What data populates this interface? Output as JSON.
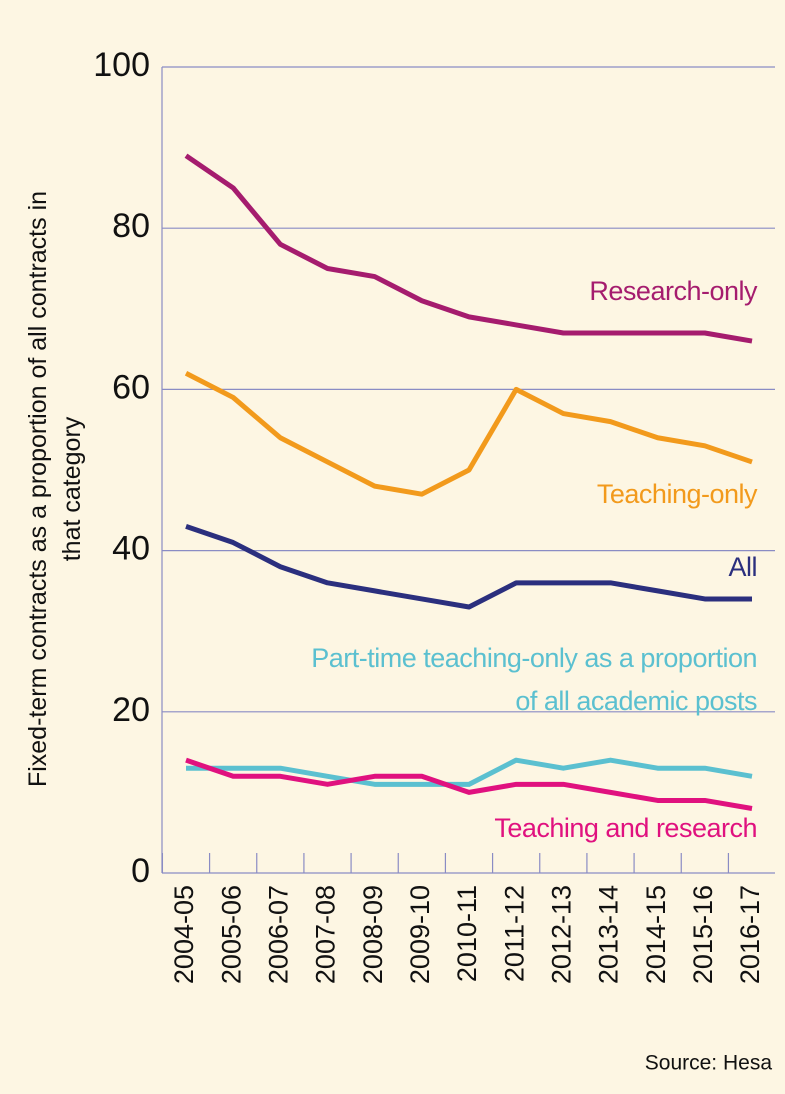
{
  "chart_data": {
    "type": "line",
    "y_label": "Fixed-term contracts as a proportion of all contracts in that category",
    "source": "Source: Hesa",
    "categories": [
      "2004-05",
      "2005-06",
      "2006-07",
      "2007-08",
      "2008-09",
      "2009-10",
      "2010-11",
      "2011-12",
      "2012-13",
      "2013-14",
      "2014-15",
      "2015-16",
      "2016-17"
    ],
    "ylim": [
      0,
      100
    ],
    "yticks": [
      0,
      20,
      40,
      60,
      80,
      100
    ],
    "grid": true,
    "series": [
      {
        "name": "Research-only",
        "color": "#a51c6e",
        "values": [
          89,
          85,
          78,
          75,
          74,
          71,
          69,
          68,
          67,
          67,
          67,
          67,
          66
        ]
      },
      {
        "name": "Teaching-only",
        "color": "#f29a1c",
        "values": [
          62,
          59,
          54,
          51,
          48,
          47,
          50,
          60,
          57,
          56,
          54,
          53,
          51
        ]
      },
      {
        "name": "All",
        "color": "#2b2f7e",
        "values": [
          43,
          41,
          38,
          36,
          35,
          34,
          33,
          36,
          36,
          36,
          35,
          34,
          34
        ]
      },
      {
        "name": "Part-time teaching-only as a proportion of all academic posts",
        "color": "#5bc0d0",
        "values": [
          13,
          13,
          13,
          12,
          11,
          11,
          11,
          14,
          13,
          14,
          13,
          13,
          12
        ]
      },
      {
        "name": "Teaching and research",
        "color": "#e0117f",
        "values": [
          14,
          12,
          12,
          11,
          12,
          12,
          10,
          11,
          11,
          10,
          9,
          9,
          8
        ]
      }
    ]
  }
}
